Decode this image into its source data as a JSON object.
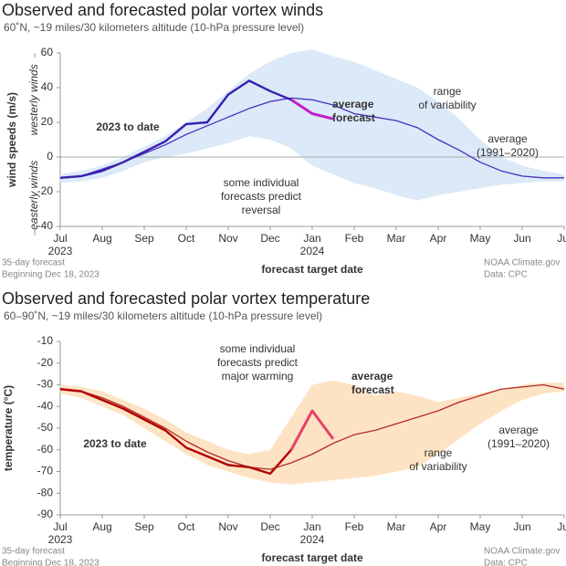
{
  "chart_data": [
    {
      "type": "line",
      "title": "Observed and forecasted polar vortex winds",
      "subtitle": "60˚N, ~19 miles/30 kilometers altitude (10-hPa pressure level)",
      "y_label": "wind speeds (m/s)",
      "y_label_upper": "westerly winds",
      "y_label_lower": "easterly winds",
      "x_label": "forecast target date",
      "footer_left": [
        "35-day forecast",
        "Beginning Dec 18, 2023"
      ],
      "footer_right": [
        "NOAA Climate.gov",
        "Data: CPC"
      ],
      "xlim": [
        0,
        12
      ],
      "ylim": [
        -40,
        60
      ],
      "yticks": [
        -40,
        -20,
        0,
        20,
        40,
        60
      ],
      "grid": false,
      "zero_line": true,
      "xticks": [
        {
          "value": 0,
          "label": "Jul 2023"
        },
        {
          "value": 1,
          "label": "Aug"
        },
        {
          "value": 2,
          "label": "Sep"
        },
        {
          "value": 3,
          "label": "Oct"
        },
        {
          "value": 4,
          "label": "Nov"
        },
        {
          "value": 5,
          "label": "Dec"
        },
        {
          "value": 6,
          "label": "Jan 2024"
        },
        {
          "value": 7,
          "label": "Feb"
        },
        {
          "value": 8,
          "label": "Mar"
        },
        {
          "value": 9,
          "label": "Apr"
        },
        {
          "value": 10,
          "label": "May"
        },
        {
          "value": 11,
          "label": "Jun"
        },
        {
          "value": 12,
          "label": "Jul"
        }
      ],
      "x": [
        0,
        0.5,
        1,
        1.5,
        2,
        2.5,
        3,
        3.5,
        4,
        4.5,
        5,
        5.5,
        6,
        6.5,
        7,
        7.5,
        8,
        8.5,
        9,
        9.5,
        10,
        10.5,
        11,
        11.5,
        12
      ],
      "band": {
        "name": "range of variability",
        "color": "#dbe9f8",
        "lower": [
          -15,
          -14,
          -12,
          -8,
          -3,
          0,
          2,
          5,
          8,
          12,
          10,
          5,
          -5,
          -10,
          -15,
          -18,
          -22,
          -25,
          -22,
          -20,
          -18,
          -16,
          -15,
          -14,
          -14
        ],
        "upper": [
          -10,
          -8,
          -5,
          0,
          6,
          12,
          20,
          28,
          38,
          48,
          55,
          60,
          62,
          58,
          55,
          50,
          45,
          40,
          32,
          22,
          10,
          0,
          -5,
          -8,
          -10
        ]
      },
      "series": [
        {
          "name": "average (1991–2020)",
          "color": "#4a2fbf",
          "width": 1.3,
          "values": [
            -12,
            -11,
            -7,
            -3,
            2,
            7,
            13,
            18,
            23,
            28,
            32,
            34,
            33,
            30,
            25,
            23,
            21,
            17,
            10,
            4,
            -3,
            -8,
            -11,
            -12,
            -12
          ]
        },
        {
          "name": "2023 to date",
          "color": "#3a1fae",
          "width": 2.4,
          "values": [
            -12,
            -11,
            -8,
            -3,
            3,
            9,
            19,
            20,
            36,
            44,
            38,
            33,
            null,
            null,
            null,
            null,
            null,
            null,
            null,
            null,
            null,
            null,
            null,
            null,
            null
          ]
        },
        {
          "name": "average forecast",
          "color": "#c21fc9",
          "width": 3,
          "values": [
            null,
            null,
            null,
            null,
            null,
            null,
            null,
            null,
            null,
            null,
            null,
            33,
            25,
            22,
            null,
            null,
            null,
            null,
            null,
            null,
            null,
            null,
            null,
            null,
            null
          ]
        }
      ],
      "annotations": [
        [
          "2023 to date"
        ],
        [
          "average",
          "forecast"
        ],
        [
          "range",
          "of variability"
        ],
        [
          "average",
          "(1991–2020)"
        ],
        [
          "some individual",
          "forecasts predict",
          "reversal"
        ]
      ]
    },
    {
      "type": "line",
      "title": "Observed and forecasted polar vortex temperature",
      "subtitle": "60–90˚N, ~19 miles/30 kilometers altitude (10-hPa pressure level)",
      "y_label": "temperature (°C)",
      "x_label": "forecast target date",
      "footer_left": [
        "35-day forecast",
        "Beginning Dec 18, 2023"
      ],
      "footer_right": [
        "NOAA Climate.gov",
        "Data: CPC"
      ],
      "xlim": [
        0,
        12
      ],
      "ylim": [
        -90,
        -10
      ],
      "yticks": [
        -90,
        -80,
        -70,
        -60,
        -50,
        -40,
        -30,
        -20,
        -10
      ],
      "grid": false,
      "zero_line": false,
      "xticks": [
        {
          "value": 0,
          "label": "Jul 2023"
        },
        {
          "value": 1,
          "label": "Aug"
        },
        {
          "value": 2,
          "label": "Sep"
        },
        {
          "value": 3,
          "label": "Oct"
        },
        {
          "value": 4,
          "label": "Nov"
        },
        {
          "value": 5,
          "label": "Dec"
        },
        {
          "value": 6,
          "label": "Jan 2024"
        },
        {
          "value": 7,
          "label": "Feb"
        },
        {
          "value": 8,
          "label": "Mar"
        },
        {
          "value": 9,
          "label": "Apr"
        },
        {
          "value": 10,
          "label": "May"
        },
        {
          "value": 11,
          "label": "Jun"
        },
        {
          "value": 12,
          "label": "Jul"
        }
      ],
      "x": [
        0,
        0.5,
        1,
        1.5,
        2,
        2.5,
        3,
        3.5,
        4,
        4.5,
        5,
        5.5,
        6,
        6.5,
        7,
        7.5,
        8,
        8.5,
        9,
        9.5,
        10,
        10.5,
        11,
        11.5,
        12
      ],
      "band": {
        "name": "range of variability",
        "color": "#fde3c4",
        "lower": [
          -34,
          -36,
          -40,
          -44,
          -50,
          -56,
          -62,
          -67,
          -70,
          -73,
          -75,
          -76,
          -75,
          -74,
          -73,
          -72,
          -70,
          -68,
          -62,
          -55,
          -48,
          -42,
          -37,
          -34,
          -33
        ],
        "upper": [
          -30,
          -31,
          -33,
          -37,
          -41,
          -46,
          -52,
          -56,
          -60,
          -62,
          -60,
          -45,
          -30,
          -28,
          -30,
          -35,
          -33,
          -35,
          -38,
          -36,
          -34,
          -32,
          -30,
          -29,
          -29
        ]
      },
      "series": [
        {
          "name": "average (1991–2020)",
          "color": "#b22a2a",
          "width": 1.3,
          "values": [
            -32,
            -33,
            -36,
            -40,
            -45,
            -50,
            -56,
            -61,
            -65,
            -68,
            -69,
            -66,
            -62,
            -57,
            -53,
            -51,
            -48,
            -45,
            -42,
            -38,
            -35,
            -32,
            -31,
            -30,
            -32
          ]
        },
        {
          "name": "2023 to date",
          "color": "#b20000",
          "width": 2.4,
          "values": [
            -32,
            -33,
            -37,
            -41,
            -46,
            -51,
            -59,
            -63,
            -67,
            -68,
            -71,
            -60,
            null,
            null,
            null,
            null,
            null,
            null,
            null,
            null,
            null,
            null,
            null,
            null,
            null
          ]
        },
        {
          "name": "average forecast",
          "color": "#e8406a",
          "width": 3,
          "values": [
            null,
            null,
            null,
            null,
            null,
            null,
            null,
            null,
            null,
            null,
            null,
            -60,
            -42,
            -55,
            null,
            null,
            null,
            null,
            null,
            null,
            null,
            null,
            null,
            null,
            null
          ]
        }
      ],
      "annotations": [
        [
          "2023 to date"
        ],
        [
          "some individual",
          "forecasts predict",
          "major warming"
        ],
        [
          "average",
          "forecast"
        ],
        [
          "range",
          "of variability"
        ],
        [
          "average",
          "(1991–2020)"
        ]
      ]
    }
  ]
}
